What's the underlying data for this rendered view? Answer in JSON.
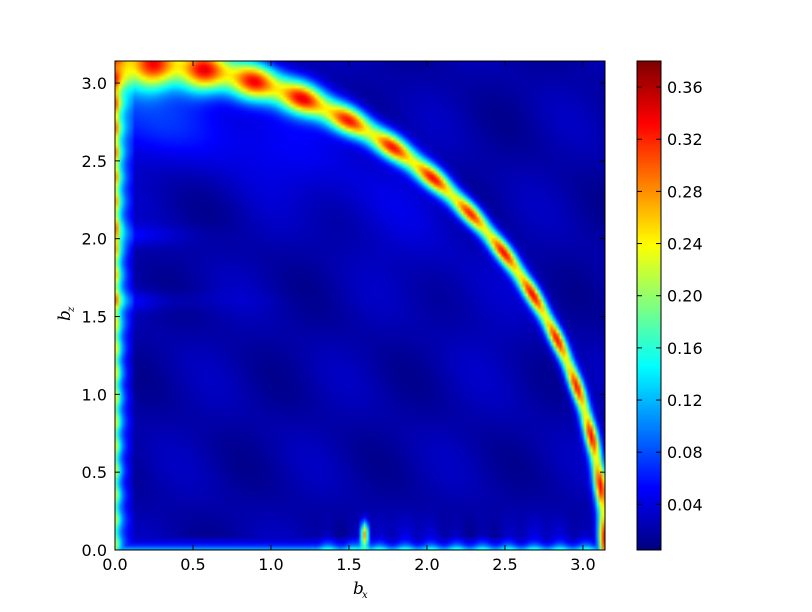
{
  "chart_data": {
    "type": "heatmap",
    "title": "",
    "xlabel": "b",
    "xlabel_sub": "x",
    "ylabel": "b",
    "ylabel_sub": "z",
    "xlim": [
      0,
      3.1416
    ],
    "ylim": [
      0,
      3.1416
    ],
    "x_ticks": [
      0.0,
      0.5,
      1.0,
      1.5,
      2.0,
      2.5,
      3.0
    ],
    "x_tick_labels": [
      "0.0",
      "0.5",
      "1.0",
      "1.5",
      "2.0",
      "2.5",
      "3.0"
    ],
    "y_ticks": [
      0.0,
      0.5,
      1.0,
      1.5,
      2.0,
      2.5,
      3.0
    ],
    "y_tick_labels": [
      "0.0",
      "0.5",
      "1.0",
      "1.5",
      "2.0",
      "2.5",
      "3.0"
    ],
    "colorbar": {
      "vmin": 0.005,
      "vmax": 0.38,
      "colormap": "jet",
      "ticks": [
        0.04,
        0.08,
        0.12,
        0.16,
        0.2,
        0.24,
        0.28,
        0.32,
        0.36
      ],
      "tick_labels": [
        "0.04",
        "0.08",
        "0.12",
        "0.16",
        "0.20",
        "0.24",
        "0.28",
        "0.32",
        "0.36"
      ]
    },
    "features": {
      "background_value": 0.02,
      "arc": {
        "center": [
          0,
          0
        ],
        "radius": 3.14,
        "peak_value": 0.36,
        "description_from": "ridge along bx^2+bz^2 = pi^2"
      },
      "left_edge_band": {
        "bx_max": 0.05,
        "value_top": 0.32,
        "value_bottom": 0.22
      },
      "bottom_band": {
        "bz_max": 0.04,
        "value": 0.12
      },
      "hot_spot": {
        "bx": 1.6,
        "bz": 0.1,
        "value": 0.36
      }
    }
  }
}
